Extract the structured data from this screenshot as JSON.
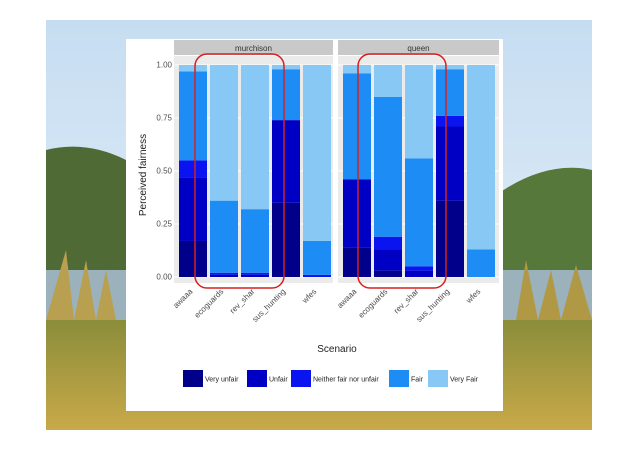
{
  "chart_data": {
    "type": "bar",
    "stacked": true,
    "x_label": "Scenario",
    "y_label": "Perceived fairness",
    "ylim": [
      0,
      1
    ],
    "y_ticks": [
      "0.00",
      "0.25",
      "0.50",
      "0.75",
      "1.00"
    ],
    "y_tick_values": [
      0,
      0.25,
      0.5,
      0.75,
      1.0
    ],
    "categories": [
      "awaaa",
      "ecoguards",
      "rev_shar",
      "sus_hunting",
      "wfes"
    ],
    "legend": {
      "placement": "bottom",
      "entries": [
        "Very unfair",
        "Unfair",
        "Neither fair nor unfair",
        "Fair",
        "Very Fair"
      ]
    },
    "colors": {
      "Very unfair": "#00008b",
      "Unfair": "#0000c4",
      "Neither fair nor unfair": "#0a14f0",
      "Fair": "#1e8cf5",
      "Very Fair": "#87c8f5"
    },
    "panels": [
      {
        "title": "murchison",
        "series": [
          {
            "name": "Very unfair",
            "values": [
              0.17,
              0.0,
              0.0,
              0.35,
              0.0
            ]
          },
          {
            "name": "Unfair",
            "values": [
              0.3,
              0.01,
              0.01,
              0.39,
              0.0
            ]
          },
          {
            "name": "Neither fair nor unfair",
            "values": [
              0.08,
              0.01,
              0.01,
              0.0,
              0.01
            ]
          },
          {
            "name": "Fair",
            "values": [
              0.42,
              0.34,
              0.3,
              0.24,
              0.16
            ]
          },
          {
            "name": "Very Fair",
            "values": [
              0.03,
              0.64,
              0.68,
              0.02,
              0.83
            ]
          }
        ]
      },
      {
        "title": "queen",
        "series": [
          {
            "name": "Very unfair",
            "values": [
              0.14,
              0.03,
              0.0,
              0.36,
              0.0
            ]
          },
          {
            "name": "Unfair",
            "values": [
              0.32,
              0.1,
              0.03,
              0.35,
              0.0
            ]
          },
          {
            "name": "Neither fair nor unfair",
            "values": [
              0.0,
              0.06,
              0.02,
              0.05,
              0.0
            ]
          },
          {
            "name": "Fair",
            "values": [
              0.5,
              0.66,
              0.51,
              0.22,
              0.13
            ]
          },
          {
            "name": "Very Fair",
            "values": [
              0.04,
              0.15,
              0.44,
              0.02,
              0.87
            ]
          }
        ]
      }
    ],
    "annotations": [
      {
        "type": "highlight-box",
        "panel": "murchison",
        "categories": [
          "ecoguards",
          "rev_shar"
        ],
        "color": "#d62020"
      },
      {
        "type": "highlight-box",
        "panel": "queen",
        "categories": [
          "ecoguards",
          "rev_shar"
        ],
        "color": "#d62020"
      }
    ]
  }
}
